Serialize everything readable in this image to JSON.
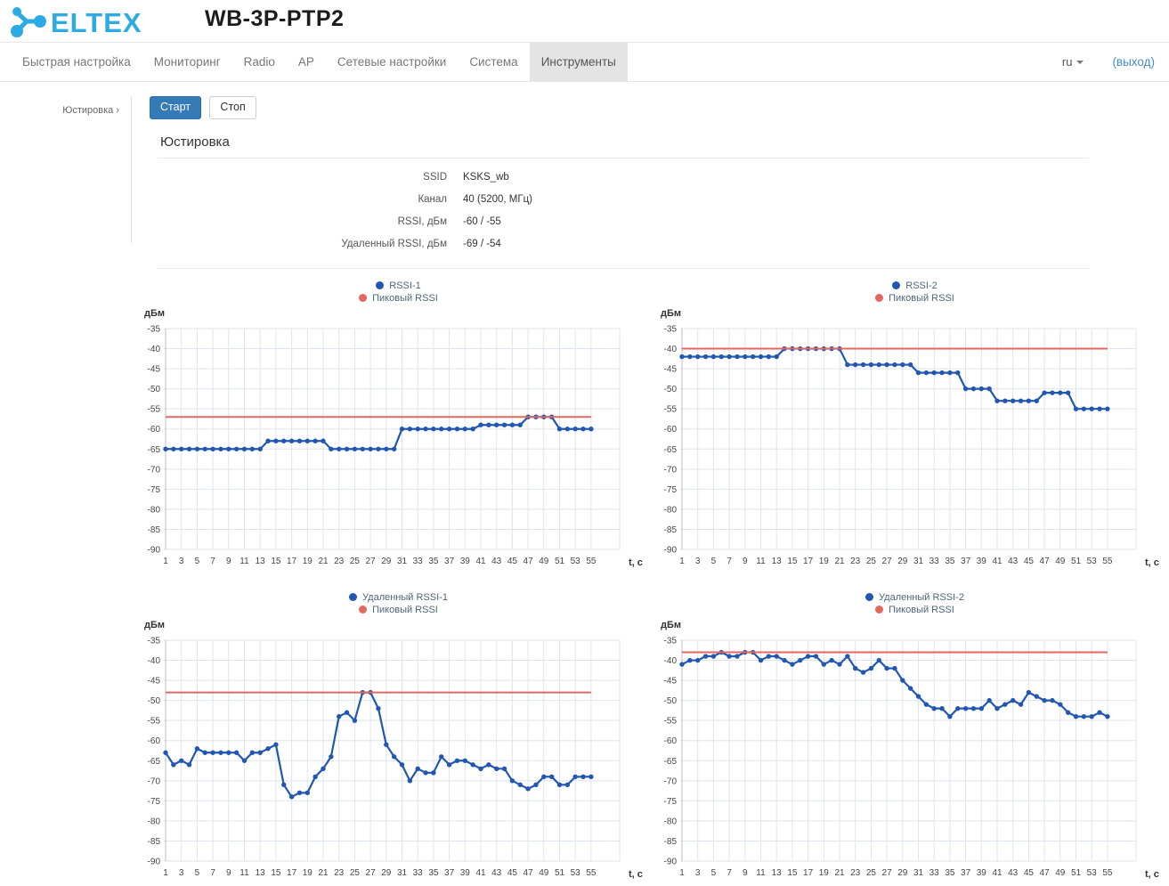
{
  "header": {
    "logo_text": "ELTEX",
    "device_title": "WB-3P-PTP2"
  },
  "navbar": {
    "items": [
      {
        "label": "Быстрая настройка",
        "active": false
      },
      {
        "label": "Мониторинг",
        "active": false
      },
      {
        "label": "Radio",
        "active": false
      },
      {
        "label": "AP",
        "active": false
      },
      {
        "label": "Сетевые настройки",
        "active": false
      },
      {
        "label": "Система",
        "active": false
      },
      {
        "label": "Инструменты",
        "active": true
      }
    ],
    "language": "ru",
    "logout_label": "(выход)"
  },
  "sidebar": {
    "items": [
      {
        "label": "Юстировка",
        "chevron": "›"
      }
    ]
  },
  "toolbar": {
    "start_label": "Старт",
    "stop_label": "Стоп"
  },
  "panel": {
    "title": "Юстировка",
    "fields": [
      {
        "label": "SSID",
        "value": "KSKS_wb"
      },
      {
        "label": "Канал",
        "value": "40 (5200, МГц)"
      },
      {
        "label": "RSSI, дБм",
        "value": "-60 / -55"
      },
      {
        "label": "Удаленный RSSI, дБм",
        "value": "-69 / -54"
      }
    ]
  },
  "colors": {
    "logo_blue": "#2daae1",
    "accent_blue": "#337ab7",
    "link_blue": "#428bca",
    "series_blue": "#2157b0",
    "peak_red": "#e26860",
    "grid": "#dde4ee",
    "axis": "#b7c1cd",
    "active_tab_bg": "#e4e4e4"
  },
  "chart_data": [
    {
      "type": "line",
      "legend": [
        {
          "label": "RSSI-1",
          "color": "#2157b0"
        },
        {
          "label": "Пиковый RSSI",
          "color": "#e26860"
        }
      ],
      "ylabel": "дБм",
      "xlabel": "t, c",
      "ylim": [
        -90,
        -35
      ],
      "yticks": [
        -35,
        -40,
        -45,
        -50,
        -55,
        -60,
        -65,
        -70,
        -75,
        -80,
        -85,
        -90
      ],
      "xticks": [
        1,
        3,
        5,
        7,
        9,
        11,
        13,
        15,
        17,
        19,
        21,
        23,
        25,
        27,
        29,
        31,
        33,
        35,
        37,
        39,
        41,
        43,
        45,
        47,
        49,
        51,
        53,
        55
      ],
      "x_range": [
        1,
        55
      ],
      "x_step": 1,
      "grid": true,
      "legend_position": "top-center",
      "series": [
        {
          "name": "RSSI-1",
          "color": "#2157b0",
          "type": "line",
          "values": [
            -65,
            -65,
            -65,
            -65,
            -65,
            -65,
            -65,
            -65,
            -65,
            -65,
            -65,
            -65,
            -65,
            -63,
            -63,
            -63,
            -63,
            -63,
            -63,
            -63,
            -63,
            -65,
            -65,
            -65,
            -65,
            -65,
            -65,
            -65,
            -65,
            -65,
            -60,
            -60,
            -60,
            -60,
            -60,
            -60,
            -60,
            -60,
            -60,
            -60,
            -59,
            -59,
            -59,
            -59,
            -59,
            -59,
            -57,
            -57,
            -57,
            -57,
            -60,
            -60,
            -60,
            -60,
            -60
          ]
        },
        {
          "name": "Пиковый RSSI",
          "color": "#e26860",
          "type": "hline",
          "value": -57
        }
      ]
    },
    {
      "type": "line",
      "legend": [
        {
          "label": "RSSI-2",
          "color": "#2157b0"
        },
        {
          "label": "Пиковый RSSI",
          "color": "#e26860"
        }
      ],
      "ylabel": "дБм",
      "xlabel": "t, c",
      "ylim": [
        -90,
        -35
      ],
      "yticks": [
        -35,
        -40,
        -45,
        -50,
        -55,
        -60,
        -65,
        -70,
        -75,
        -80,
        -85,
        -90
      ],
      "xticks": [
        1,
        3,
        5,
        7,
        9,
        11,
        13,
        15,
        17,
        19,
        21,
        23,
        25,
        27,
        29,
        31,
        33,
        35,
        37,
        39,
        41,
        43,
        45,
        47,
        49,
        51,
        53,
        55
      ],
      "x_range": [
        1,
        55
      ],
      "x_step": 1,
      "grid": true,
      "legend_position": "top-center",
      "series": [
        {
          "name": "RSSI-2",
          "color": "#2157b0",
          "type": "line",
          "values": [
            -42,
            -42,
            -42,
            -42,
            -42,
            -42,
            -42,
            -42,
            -42,
            -42,
            -42,
            -42,
            -42,
            -40,
            -40,
            -40,
            -40,
            -40,
            -40,
            -40,
            -40,
            -44,
            -44,
            -44,
            -44,
            -44,
            -44,
            -44,
            -44,
            -44,
            -46,
            -46,
            -46,
            -46,
            -46,
            -46,
            -50,
            -50,
            -50,
            -50,
            -53,
            -53,
            -53,
            -53,
            -53,
            -53,
            -51,
            -51,
            -51,
            -51,
            -55,
            -55,
            -55,
            -55,
            -55
          ]
        },
        {
          "name": "Пиковый RSSI",
          "color": "#e26860",
          "type": "hline",
          "value": -40
        }
      ]
    },
    {
      "type": "line",
      "legend": [
        {
          "label": "Удаленный RSSI-1",
          "color": "#2157b0"
        },
        {
          "label": "Пиковый RSSI",
          "color": "#e26860"
        }
      ],
      "ylabel": "дБм",
      "xlabel": "t, c",
      "ylim": [
        -90,
        -35
      ],
      "yticks": [
        -35,
        -40,
        -45,
        -50,
        -55,
        -60,
        -65,
        -70,
        -75,
        -80,
        -85,
        -90
      ],
      "xticks": [
        1,
        3,
        5,
        7,
        9,
        11,
        13,
        15,
        17,
        19,
        21,
        23,
        25,
        27,
        29,
        31,
        33,
        35,
        37,
        39,
        41,
        43,
        45,
        47,
        49,
        51,
        53,
        55
      ],
      "x_range": [
        1,
        55
      ],
      "x_step": 1,
      "grid": true,
      "legend_position": "top-center",
      "series": [
        {
          "name": "Удаленный RSSI-1",
          "color": "#2157b0",
          "type": "line",
          "values": [
            -63,
            -66,
            -65,
            -66,
            -62,
            -63,
            -63,
            -63,
            -63,
            -63,
            -65,
            -63,
            -63,
            -62,
            -61,
            -71,
            -74,
            -73,
            -73,
            -69,
            -67,
            -64,
            -54,
            -53,
            -55,
            -48,
            -48,
            -52,
            -61,
            -64,
            -66,
            -70,
            -67,
            -68,
            -68,
            -64,
            -66,
            -65,
            -65,
            -66,
            -67,
            -66,
            -67,
            -67,
            -70,
            -71,
            -72,
            -71,
            -69,
            -69,
            -71,
            -71,
            -69,
            -69,
            -69
          ]
        },
        {
          "name": "Пиковый RSSI",
          "color": "#e26860",
          "type": "hline",
          "value": -48
        }
      ]
    },
    {
      "type": "line",
      "legend": [
        {
          "label": "Удаленный RSSI-2",
          "color": "#2157b0"
        },
        {
          "label": "Пиковый RSSI",
          "color": "#e26860"
        }
      ],
      "ylabel": "дБм",
      "xlabel": "t, c",
      "ylim": [
        -90,
        -35
      ],
      "yticks": [
        -35,
        -40,
        -45,
        -50,
        -55,
        -60,
        -65,
        -70,
        -75,
        -80,
        -85,
        -90
      ],
      "xticks": [
        1,
        3,
        5,
        7,
        9,
        11,
        13,
        15,
        17,
        19,
        21,
        23,
        25,
        27,
        29,
        31,
        33,
        35,
        37,
        39,
        41,
        43,
        45,
        47,
        49,
        51,
        53,
        55
      ],
      "x_range": [
        1,
        55
      ],
      "x_step": 1,
      "grid": true,
      "legend_position": "top-center",
      "series": [
        {
          "name": "Удаленный RSSI-2",
          "color": "#2157b0",
          "type": "line",
          "values": [
            -41,
            -40,
            -40,
            -39,
            -39,
            -38,
            -39,
            -39,
            -38,
            -38,
            -40,
            -39,
            -39,
            -40,
            -41,
            -40,
            -39,
            -39,
            -41,
            -40,
            -41,
            -39,
            -42,
            -43,
            -42,
            -40,
            -42,
            -42,
            -45,
            -47,
            -49,
            -51,
            -52,
            -52,
            -54,
            -52,
            -52,
            -52,
            -52,
            -50,
            -52,
            -51,
            -50,
            -51,
            -48,
            -49,
            -50,
            -50,
            -51,
            -53,
            -54,
            -54,
            -54,
            -53,
            -54
          ]
        },
        {
          "name": "Пиковый RSSI",
          "color": "#e26860",
          "type": "hline",
          "value": -38
        }
      ]
    }
  ]
}
